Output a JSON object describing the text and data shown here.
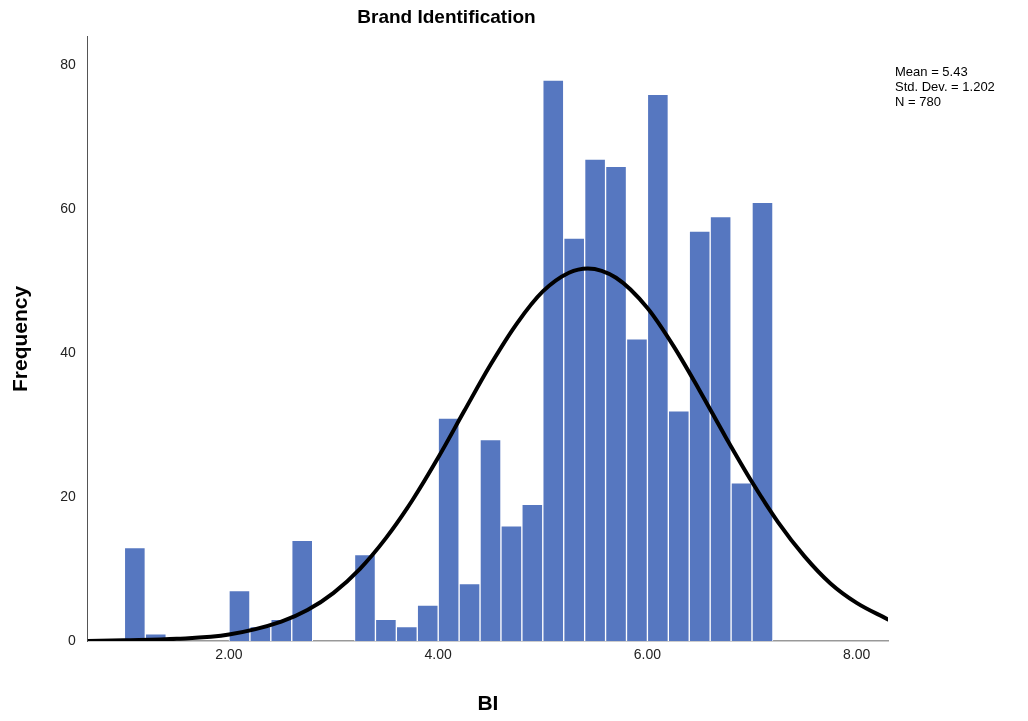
{
  "chart_data": {
    "type": "histogram",
    "title": "Brand Identification",
    "xlabel": "BI",
    "ylabel": "Frequency",
    "bins": [
      1.0,
      1.2,
      1.4,
      1.6,
      1.8,
      2.0,
      2.2,
      2.4,
      2.6,
      2.8,
      3.0,
      3.2,
      3.4,
      3.6,
      3.8,
      4.0,
      4.2,
      4.4,
      4.6,
      4.8,
      5.0,
      5.2,
      5.4,
      5.6,
      5.8,
      6.0,
      6.2,
      6.4,
      6.6,
      6.8,
      7.0,
      7.2
    ],
    "values": [
      13,
      1,
      0,
      0,
      0,
      7,
      2,
      3,
      14,
      0,
      0,
      12,
      3,
      2,
      5,
      31,
      8,
      28,
      16,
      19,
      78,
      56,
      67,
      66,
      42,
      76,
      32,
      57,
      59,
      22,
      61
    ],
    "color": "#5677c0",
    "series": [
      {
        "type": "line",
        "color": "#000000",
        "x": [
          0.65,
          1.0,
          1.5,
          2.0,
          2.5,
          2.75,
          3.0,
          3.25,
          3.5,
          3.75,
          4.0,
          4.25,
          4.5,
          4.75,
          5.0,
          5.25,
          5.43,
          5.7,
          6.0,
          6.25,
          6.5,
          6.75,
          7.0,
          7.25,
          7.5,
          7.75,
          8.0,
          8.3
        ],
        "values": [
          0,
          0.1,
          0.3,
          0.9,
          2.7,
          4.3,
          6.7,
          10.0,
          14.3,
          19.5,
          25.5,
          32.0,
          38.4,
          44.1,
          48.6,
          51.2,
          51.8,
          50.5,
          46.3,
          41.0,
          34.8,
          28.3,
          22.1,
          16.5,
          11.8,
          8.0,
          5.3,
          3.0
        ]
      }
    ],
    "xlim": [
      0.65,
      8.3
    ],
    "xticks": [
      {
        "value": 2,
        "label": "2.00"
      },
      {
        "value": 4,
        "label": "4.00"
      },
      {
        "value": 6,
        "label": "6.00"
      },
      {
        "value": 8,
        "label": "8.00"
      }
    ],
    "ylim": [
      0,
      84
    ],
    "yticks": [
      0,
      20,
      40,
      60,
      80
    ],
    "grid": false,
    "legend": false,
    "marker": "none",
    "line_style": "solid",
    "annotations": [
      "Mean = 5.43",
      "Std. Dev. = 1.202",
      "N = 780"
    ]
  }
}
